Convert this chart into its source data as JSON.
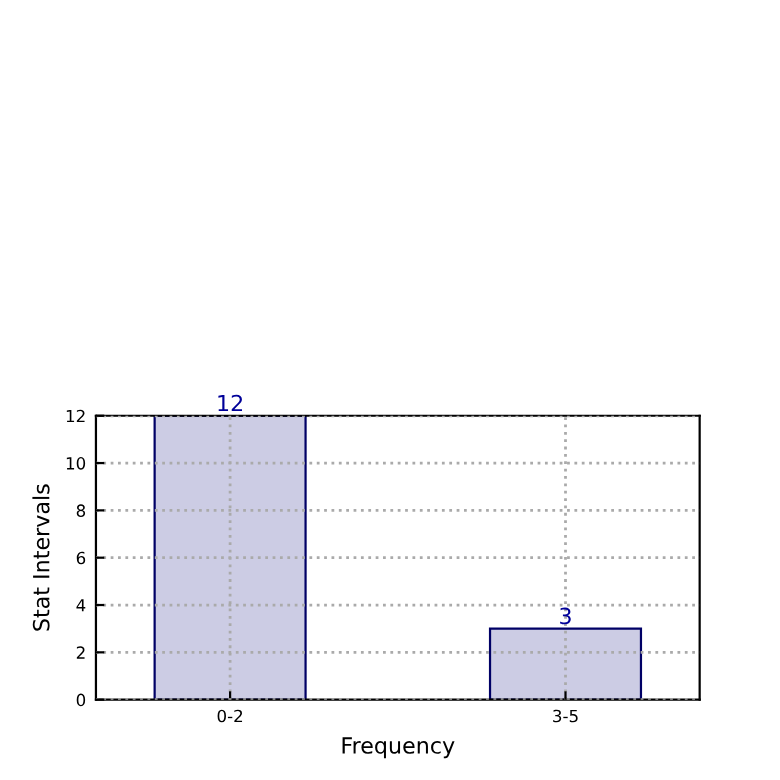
{
  "chart_data": {
    "type": "bar",
    "xlabel": "Frequency",
    "ylabel": "Stat Intervals",
    "categories": [
      "0-2",
      "3-5"
    ],
    "series": [
      {
        "color": "#cccce4",
        "values": [
          12,
          3
        ]
      }
    ],
    "ylim": [
      0,
      12
    ],
    "yticks": [
      0,
      2,
      4,
      6,
      8,
      10,
      12
    ],
    "grid": true,
    "data_labels": true
  }
}
